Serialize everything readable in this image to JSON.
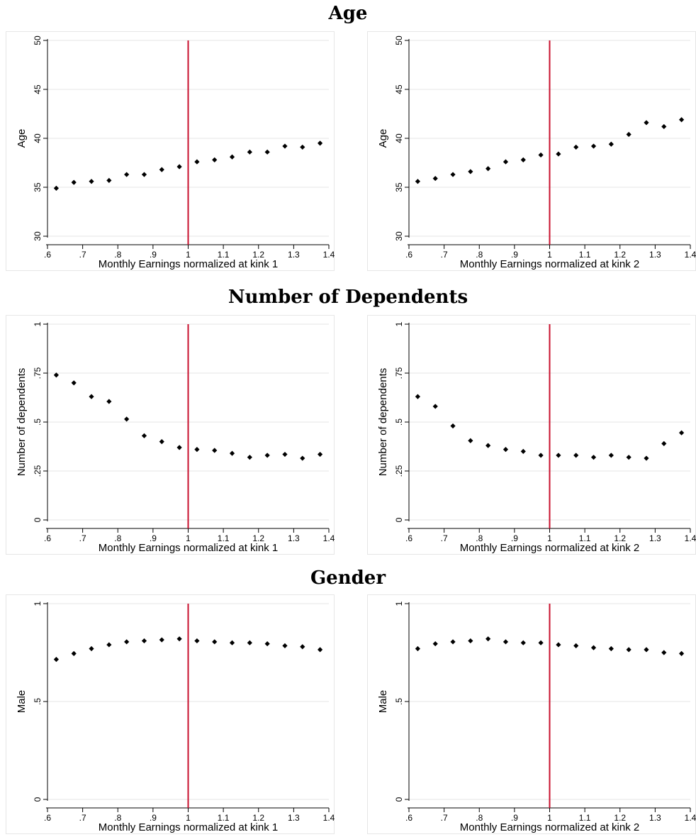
{
  "sections": [
    {
      "title": "Age"
    },
    {
      "title": "Number of Dependents"
    },
    {
      "title": "Gender"
    }
  ],
  "colors": {
    "kink_line": "#c8102e",
    "marker": "#000000",
    "grid": "#e5e5e5",
    "axis": "#000000"
  },
  "chart_data": [
    {
      "type": "scatter",
      "section": "Age",
      "xlabel": "Monthly Earnings normalized at kink 1",
      "ylabel": "Age",
      "xlim": [
        0.6,
        1.4
      ],
      "ylim": [
        30,
        50
      ],
      "x_ticks": [
        ".6",
        ".7",
        ".8",
        ".9",
        "1",
        "1.1",
        "1.2",
        "1.3",
        "1.4"
      ],
      "y_ticks": [
        "30",
        "35",
        "40",
        "45",
        "50"
      ],
      "y_tick_values": [
        30,
        35,
        40,
        45,
        50
      ],
      "kink_x": 1.0,
      "grid": true,
      "x": [
        0.625,
        0.675,
        0.725,
        0.775,
        0.825,
        0.875,
        0.925,
        0.975,
        1.025,
        1.075,
        1.125,
        1.175,
        1.225,
        1.275,
        1.325,
        1.375
      ],
      "y": [
        34.9,
        35.5,
        35.6,
        35.7,
        36.3,
        36.3,
        36.8,
        37.1,
        37.6,
        37.8,
        38.1,
        38.6,
        38.6,
        39.2,
        39.1,
        39.5
      ]
    },
    {
      "type": "scatter",
      "section": "Age",
      "xlabel": "Monthly Earnings normalized at kink 2",
      "ylabel": "Age",
      "xlim": [
        0.6,
        1.4
      ],
      "ylim": [
        30,
        50
      ],
      "x_ticks": [
        ".6",
        ".7",
        ".8",
        ".9",
        "1",
        "1.1",
        "1.2",
        "1.3",
        "1.4"
      ],
      "y_ticks": [
        "30",
        "35",
        "40",
        "45",
        "50"
      ],
      "y_tick_values": [
        30,
        35,
        40,
        45,
        50
      ],
      "kink_x": 1.0,
      "grid": true,
      "x": [
        0.625,
        0.675,
        0.725,
        0.775,
        0.825,
        0.875,
        0.925,
        0.975,
        1.025,
        1.075,
        1.125,
        1.175,
        1.225,
        1.275,
        1.325,
        1.375
      ],
      "y": [
        35.6,
        35.9,
        36.3,
        36.6,
        36.9,
        37.6,
        37.8,
        38.3,
        38.4,
        39.1,
        39.2,
        39.4,
        40.4,
        41.6,
        41.2,
        41.9
      ]
    },
    {
      "type": "scatter",
      "section": "Number of Dependents",
      "xlabel": "Monthly Earnings normalized at kink 1",
      "ylabel": "Number of dependents",
      "xlim": [
        0.6,
        1.4
      ],
      "ylim": [
        0,
        1
      ],
      "x_ticks": [
        ".6",
        ".7",
        ".8",
        ".9",
        "1",
        "1.1",
        "1.2",
        "1.3",
        "1.4"
      ],
      "y_ticks": [
        "0",
        ".25",
        ".5",
        ".75",
        "1"
      ],
      "y_tick_values": [
        0,
        0.25,
        0.5,
        0.75,
        1
      ],
      "kink_x": 1.0,
      "grid": true,
      "x": [
        0.625,
        0.675,
        0.725,
        0.775,
        0.825,
        0.875,
        0.925,
        0.975,
        1.025,
        1.075,
        1.125,
        1.175,
        1.225,
        1.275,
        1.325,
        1.375
      ],
      "y": [
        0.74,
        0.7,
        0.63,
        0.605,
        0.515,
        0.43,
        0.4,
        0.37,
        0.36,
        0.355,
        0.34,
        0.32,
        0.33,
        0.335,
        0.315,
        0.335
      ]
    },
    {
      "type": "scatter",
      "section": "Number of Dependents",
      "xlabel": "Monthly Earnings normalized at kink 2",
      "ylabel": "Number of dependents",
      "xlim": [
        0.6,
        1.4
      ],
      "ylim": [
        0,
        1
      ],
      "x_ticks": [
        ".6",
        ".7",
        ".8",
        ".9",
        "1",
        "1.1",
        "1.2",
        "1.3",
        "1.4"
      ],
      "y_ticks": [
        "0",
        ".25",
        ".5",
        ".75",
        "1"
      ],
      "y_tick_values": [
        0,
        0.25,
        0.5,
        0.75,
        1
      ],
      "kink_x": 1.0,
      "grid": true,
      "x": [
        0.625,
        0.675,
        0.725,
        0.775,
        0.825,
        0.875,
        0.925,
        0.975,
        1.025,
        1.075,
        1.125,
        1.175,
        1.225,
        1.275,
        1.325,
        1.375
      ],
      "y": [
        0.63,
        0.58,
        0.48,
        0.405,
        0.38,
        0.36,
        0.35,
        0.33,
        0.33,
        0.33,
        0.32,
        0.33,
        0.32,
        0.315,
        0.39,
        0.445
      ]
    },
    {
      "type": "scatter",
      "section": "Gender",
      "xlabel": "Monthly Earnings normalized at kink 1",
      "ylabel": "Male",
      "xlim": [
        0.6,
        1.4
      ],
      "ylim": [
        0,
        1
      ],
      "x_ticks": [
        ".6",
        ".7",
        ".8",
        ".9",
        "1",
        "1.1",
        "1.2",
        "1.3",
        "1.4"
      ],
      "y_ticks": [
        "0",
        ".5",
        "1"
      ],
      "y_tick_values": [
        0,
        0.5,
        1
      ],
      "kink_x": 1.0,
      "grid": true,
      "x": [
        0.625,
        0.675,
        0.725,
        0.775,
        0.825,
        0.875,
        0.925,
        0.975,
        1.025,
        1.075,
        1.125,
        1.175,
        1.225,
        1.275,
        1.325,
        1.375
      ],
      "y": [
        0.715,
        0.745,
        0.77,
        0.79,
        0.805,
        0.81,
        0.815,
        0.82,
        0.81,
        0.805,
        0.8,
        0.8,
        0.795,
        0.785,
        0.78,
        0.765
      ]
    },
    {
      "type": "scatter",
      "section": "Gender",
      "xlabel": "Monthly Earnings normalized at kink 2",
      "ylabel": "Male",
      "xlim": [
        0.6,
        1.4
      ],
      "ylim": [
        0,
        1
      ],
      "x_ticks": [
        ".6",
        ".7",
        ".8",
        ".9",
        "1",
        "1.1",
        "1.2",
        "1.3",
        "1.4"
      ],
      "y_ticks": [
        "0",
        ".5",
        "1"
      ],
      "y_tick_values": [
        0,
        0.5,
        1
      ],
      "kink_x": 1.0,
      "grid": true,
      "x": [
        0.625,
        0.675,
        0.725,
        0.775,
        0.825,
        0.875,
        0.925,
        0.975,
        1.025,
        1.075,
        1.125,
        1.175,
        1.225,
        1.275,
        1.325,
        1.375
      ],
      "y": [
        0.77,
        0.795,
        0.805,
        0.81,
        0.82,
        0.805,
        0.8,
        0.8,
        0.79,
        0.785,
        0.775,
        0.77,
        0.765,
        0.765,
        0.75,
        0.745
      ]
    }
  ]
}
